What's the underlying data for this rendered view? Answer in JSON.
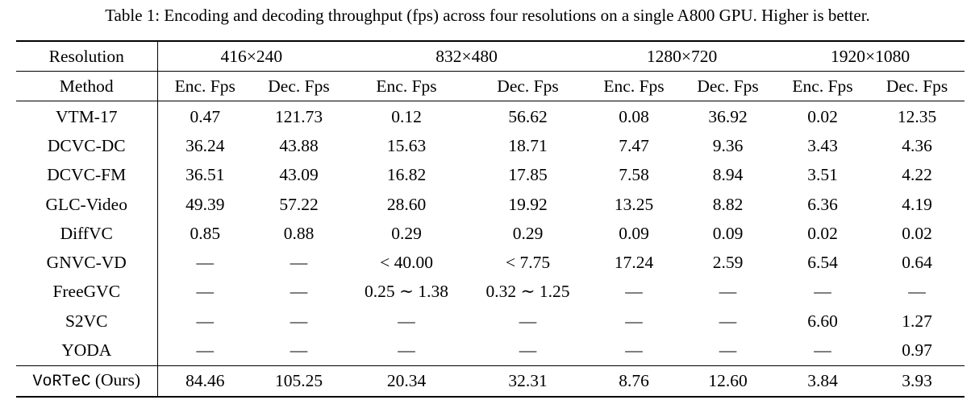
{
  "caption": "Table 1:  Encoding and decoding throughput (fps) across four resolutions on a single A800 GPU. Higher is better.",
  "header": {
    "resolution_label": "Resolution",
    "method_label": "Method",
    "resolutions": [
      "416×240",
      "832×480",
      "1280×720",
      "1920×1080"
    ],
    "enc_label": "Enc. Fps",
    "dec_label": "Dec. Fps"
  },
  "rows": [
    {
      "method": "VTM-17",
      "values": [
        "0.47",
        "121.73",
        "0.12",
        "56.62",
        "0.08",
        "36.92",
        "0.02",
        "12.35"
      ]
    },
    {
      "method": "DCVC-DC",
      "values": [
        "36.24",
        "43.88",
        "15.63",
        "18.71",
        "7.47",
        "9.36",
        "3.43",
        "4.36"
      ]
    },
    {
      "method": "DCVC-FM",
      "values": [
        "36.51",
        "43.09",
        "16.82",
        "17.85",
        "7.58",
        "8.94",
        "3.51",
        "4.22"
      ]
    },
    {
      "method": "GLC-Video",
      "values": [
        "49.39",
        "57.22",
        "28.60",
        "19.92",
        "13.25",
        "8.82",
        "6.36",
        "4.19"
      ]
    },
    {
      "method": "DiffVC",
      "values": [
        "0.85",
        "0.88",
        "0.29",
        "0.29",
        "0.09",
        "0.09",
        "0.02",
        "0.02"
      ]
    },
    {
      "method": "GNVC-VD",
      "values": [
        "—",
        "—",
        "< 40.00",
        "< 7.75",
        "17.24",
        "2.59",
        "6.54",
        "0.64"
      ]
    },
    {
      "method": "FreeGVC",
      "values": [
        "—",
        "—",
        "0.25 ∼ 1.38",
        "0.32 ∼ 1.25",
        "—",
        "—",
        "—",
        "—"
      ]
    },
    {
      "method": "S2VC",
      "values": [
        "—",
        "—",
        "—",
        "—",
        "—",
        "—",
        "6.60",
        "1.27"
      ]
    },
    {
      "method": "YODA",
      "values": [
        "—",
        "—",
        "—",
        "—",
        "—",
        "—",
        "—",
        "0.97"
      ]
    }
  ],
  "ours": {
    "method_name": "VoRTeC",
    "method_suffix": "(Ours)",
    "values": [
      "84.46",
      "105.25",
      "20.34",
      "32.31",
      "8.76",
      "12.60",
      "3.84",
      "3.93"
    ]
  }
}
